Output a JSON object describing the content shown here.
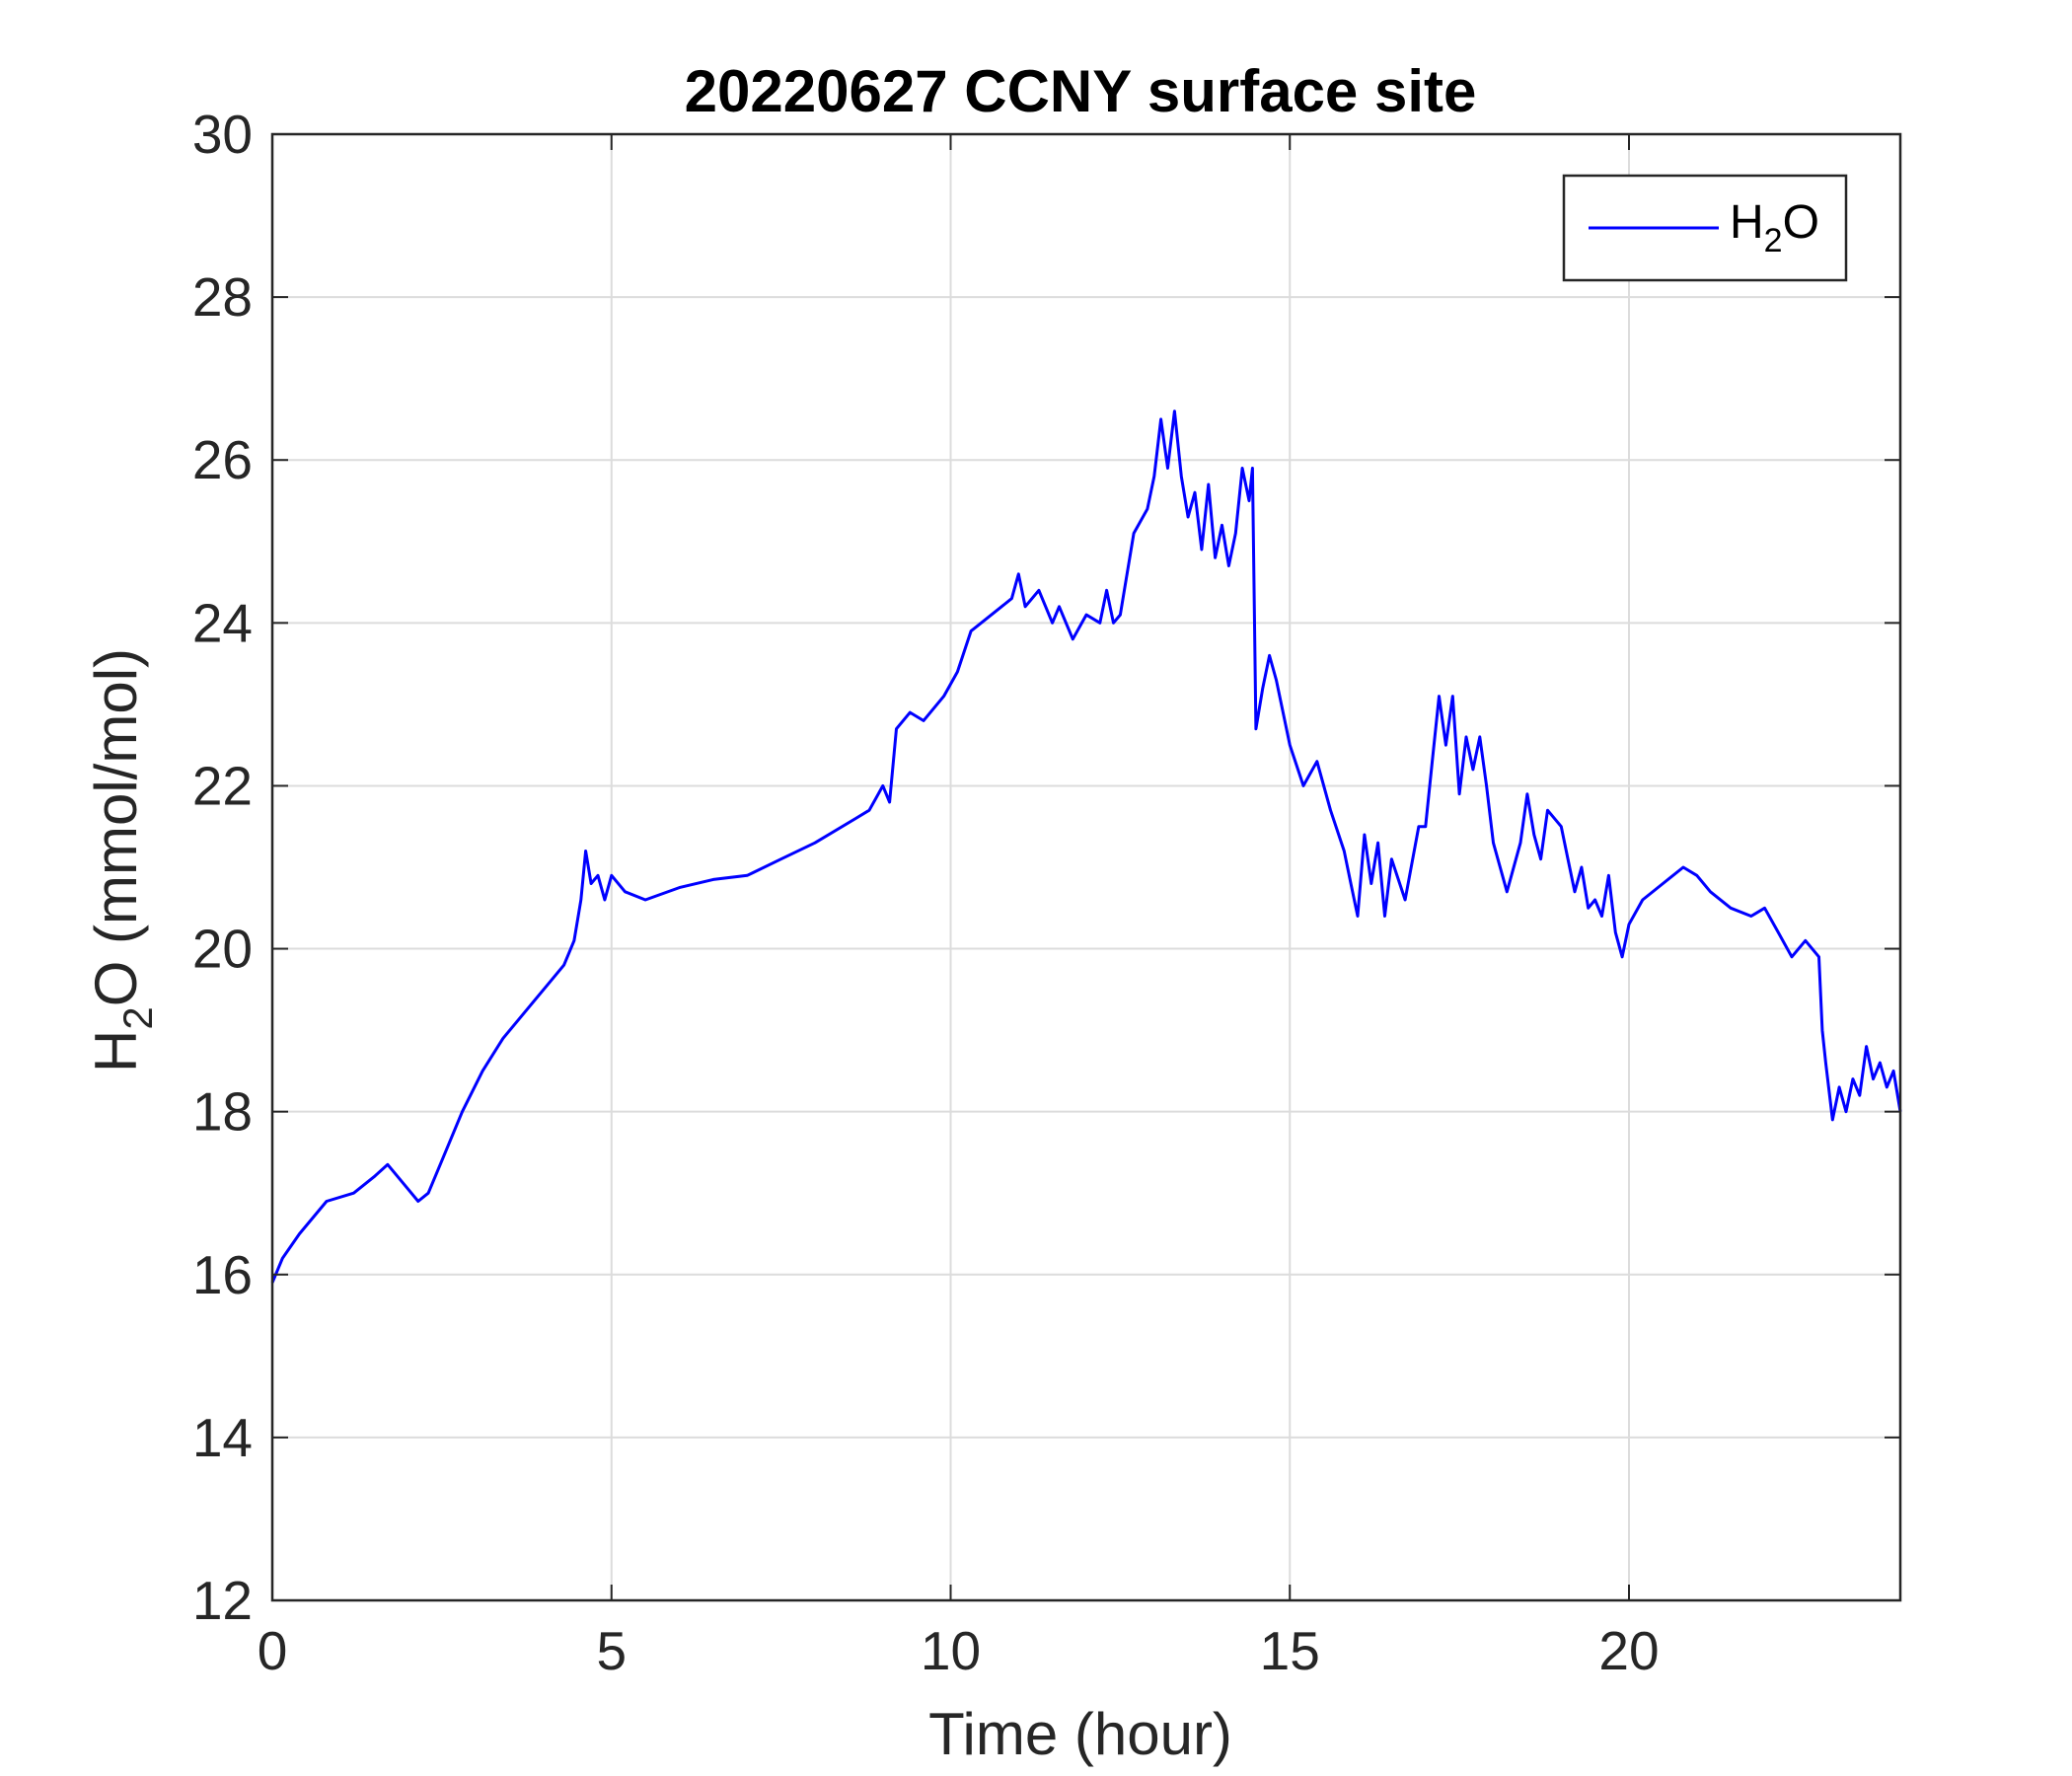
{
  "chart_data": {
    "type": "line",
    "title": "20220627 CCNY surface site",
    "xlabel": "Time (hour)",
    "ylabel": {
      "main": "H",
      "sub": "2",
      "rest": "O (mmol/mol)"
    },
    "xlim": [
      0,
      24
    ],
    "ylim": [
      12,
      30
    ],
    "xticks": [
      0,
      5,
      10,
      15,
      20
    ],
    "yticks": [
      12,
      14,
      16,
      18,
      20,
      22,
      24,
      26,
      28,
      30
    ],
    "grid": true,
    "legend": {
      "position": "top-right",
      "entries": [
        {
          "main": "H",
          "sub": "2",
          "rest": "O",
          "color": "#0000ff"
        }
      ]
    },
    "series": [
      {
        "name": "H2O",
        "color": "#0000ff",
        "points": [
          [
            0.0,
            15.9
          ],
          [
            0.15,
            16.2
          ],
          [
            0.4,
            16.5
          ],
          [
            0.8,
            16.9
          ],
          [
            1.2,
            17.0
          ],
          [
            1.5,
            17.2
          ],
          [
            1.7,
            17.35
          ],
          [
            1.85,
            17.2
          ],
          [
            2.0,
            17.05
          ],
          [
            2.15,
            16.9
          ],
          [
            2.3,
            17.0
          ],
          [
            2.5,
            17.4
          ],
          [
            2.8,
            18.0
          ],
          [
            3.1,
            18.5
          ],
          [
            3.4,
            18.9
          ],
          [
            3.8,
            19.3
          ],
          [
            4.1,
            19.6
          ],
          [
            4.3,
            19.8
          ],
          [
            4.45,
            20.1
          ],
          [
            4.55,
            20.6
          ],
          [
            4.62,
            21.2
          ],
          [
            4.7,
            20.8
          ],
          [
            4.8,
            20.9
          ],
          [
            4.9,
            20.6
          ],
          [
            5.0,
            20.9
          ],
          [
            5.2,
            20.7
          ],
          [
            5.5,
            20.6
          ],
          [
            6.0,
            20.75
          ],
          [
            6.5,
            20.85
          ],
          [
            7.0,
            20.9
          ],
          [
            7.5,
            21.1
          ],
          [
            8.0,
            21.3
          ],
          [
            8.6,
            21.6
          ],
          [
            8.8,
            21.7
          ],
          [
            9.0,
            22.0
          ],
          [
            9.1,
            21.8
          ],
          [
            9.2,
            22.7
          ],
          [
            9.4,
            22.9
          ],
          [
            9.6,
            22.8
          ],
          [
            9.9,
            23.1
          ],
          [
            10.1,
            23.4
          ],
          [
            10.3,
            23.9
          ],
          [
            10.6,
            24.1
          ],
          [
            10.9,
            24.3
          ],
          [
            11.0,
            24.6
          ],
          [
            11.1,
            24.2
          ],
          [
            11.3,
            24.4
          ],
          [
            11.5,
            24.0
          ],
          [
            11.6,
            24.2
          ],
          [
            11.8,
            23.8
          ],
          [
            12.0,
            24.1
          ],
          [
            12.2,
            24.0
          ],
          [
            12.3,
            24.4
          ],
          [
            12.4,
            24.0
          ],
          [
            12.5,
            24.1
          ],
          [
            12.7,
            25.1
          ],
          [
            12.9,
            25.4
          ],
          [
            13.0,
            25.8
          ],
          [
            13.1,
            26.5
          ],
          [
            13.2,
            25.9
          ],
          [
            13.3,
            26.6
          ],
          [
            13.4,
            25.8
          ],
          [
            13.5,
            25.3
          ],
          [
            13.6,
            25.6
          ],
          [
            13.7,
            24.9
          ],
          [
            13.8,
            25.7
          ],
          [
            13.9,
            24.8
          ],
          [
            14.0,
            25.2
          ],
          [
            14.1,
            24.7
          ],
          [
            14.2,
            25.1
          ],
          [
            14.3,
            25.9
          ],
          [
            14.4,
            25.5
          ],
          [
            14.45,
            25.9
          ],
          [
            14.5,
            22.7
          ],
          [
            14.6,
            23.2
          ],
          [
            14.7,
            23.6
          ],
          [
            14.8,
            23.3
          ],
          [
            15.0,
            22.5
          ],
          [
            15.2,
            22.0
          ],
          [
            15.4,
            22.3
          ],
          [
            15.6,
            21.7
          ],
          [
            15.8,
            21.2
          ],
          [
            15.9,
            20.8
          ],
          [
            16.0,
            20.4
          ],
          [
            16.1,
            21.4
          ],
          [
            16.2,
            20.8
          ],
          [
            16.3,
            21.3
          ],
          [
            16.4,
            20.4
          ],
          [
            16.5,
            21.1
          ],
          [
            16.7,
            20.6
          ],
          [
            16.9,
            21.5
          ],
          [
            17.0,
            21.5
          ],
          [
            17.1,
            22.3
          ],
          [
            17.2,
            23.1
          ],
          [
            17.3,
            22.5
          ],
          [
            17.4,
            23.1
          ],
          [
            17.5,
            21.9
          ],
          [
            17.6,
            22.6
          ],
          [
            17.7,
            22.2
          ],
          [
            17.8,
            22.6
          ],
          [
            17.9,
            22.0
          ],
          [
            18.0,
            21.3
          ],
          [
            18.1,
            21.0
          ],
          [
            18.2,
            20.7
          ],
          [
            18.4,
            21.3
          ],
          [
            18.5,
            21.9
          ],
          [
            18.6,
            21.4
          ],
          [
            18.7,
            21.1
          ],
          [
            18.8,
            21.7
          ],
          [
            19.0,
            21.5
          ],
          [
            19.1,
            21.1
          ],
          [
            19.2,
            20.7
          ],
          [
            19.3,
            21.0
          ],
          [
            19.4,
            20.5
          ],
          [
            19.5,
            20.6
          ],
          [
            19.6,
            20.4
          ],
          [
            19.7,
            20.9
          ],
          [
            19.8,
            20.2
          ],
          [
            19.9,
            19.9
          ],
          [
            20.0,
            20.3
          ],
          [
            20.2,
            20.6
          ],
          [
            20.5,
            20.8
          ],
          [
            20.8,
            21.0
          ],
          [
            21.0,
            20.9
          ],
          [
            21.2,
            20.7
          ],
          [
            21.5,
            20.5
          ],
          [
            21.8,
            20.4
          ],
          [
            22.0,
            20.5
          ],
          [
            22.2,
            20.2
          ],
          [
            22.4,
            19.9
          ],
          [
            22.6,
            20.1
          ],
          [
            22.8,
            19.9
          ],
          [
            22.85,
            19.0
          ],
          [
            22.9,
            18.6
          ],
          [
            23.0,
            17.9
          ],
          [
            23.1,
            18.3
          ],
          [
            23.2,
            18.0
          ],
          [
            23.3,
            18.4
          ],
          [
            23.4,
            18.2
          ],
          [
            23.5,
            18.8
          ],
          [
            23.6,
            18.4
          ],
          [
            23.7,
            18.6
          ],
          [
            23.8,
            18.3
          ],
          [
            23.9,
            18.5
          ],
          [
            24.0,
            18.0
          ]
        ]
      }
    ]
  }
}
